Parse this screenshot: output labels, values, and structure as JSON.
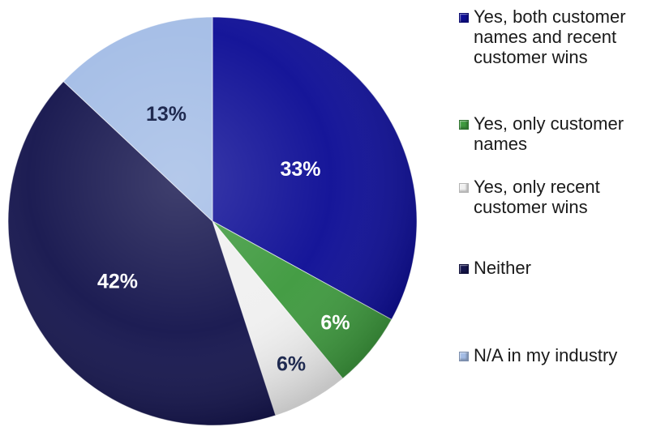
{
  "chart_data": {
    "type": "pie",
    "title": "",
    "legend_position": "right",
    "slices": [
      {
        "label": "Yes, both customer names and recent customer wins",
        "value": 33,
        "display": "33%",
        "color": "#0f0f96",
        "label_color": "#ffffff"
      },
      {
        "label": "Yes, only customer names",
        "value": 6,
        "display": "6%",
        "color": "#3f9a3f",
        "label_color": "#ffffff"
      },
      {
        "label": "Yes, only recent customer wins",
        "value": 6,
        "display": "6%",
        "color": "#f0f0f0",
        "label_color": "#1f2a50"
      },
      {
        "label": "Neither",
        "value": 42,
        "display": "42%",
        "color": "#16164e",
        "label_color": "#ffffff"
      },
      {
        "label": "N/A in my industry",
        "value": 13,
        "display": "13%",
        "color": "#a4bde6",
        "label_color": "#1f2a50"
      }
    ]
  }
}
